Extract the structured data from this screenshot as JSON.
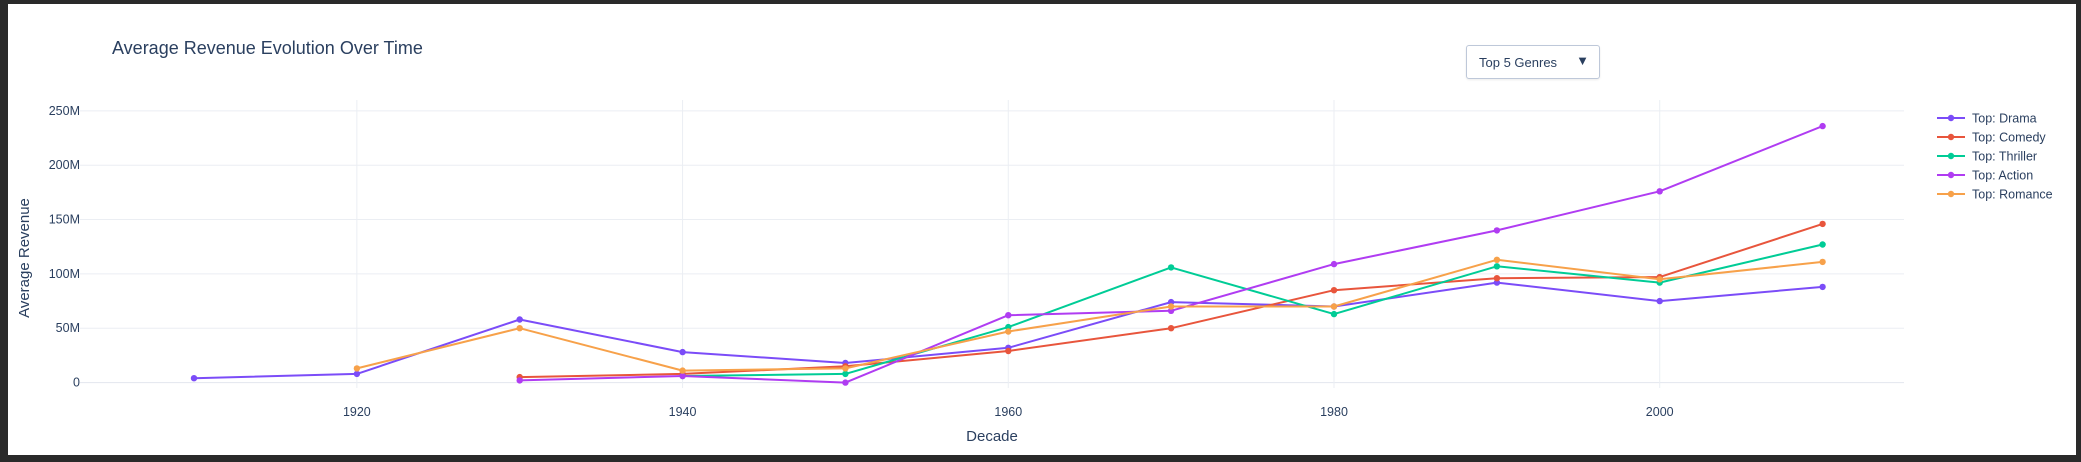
{
  "chart_data": {
    "type": "line",
    "title": "Average Revenue Evolution Over Time",
    "xlabel": "Decade",
    "ylabel": "Average Revenue",
    "xlim": [
      1903,
      2015
    ],
    "ylim": [
      -5,
      260
    ],
    "x_ticks": [
      {
        "value": 1920,
        "label": "1920"
      },
      {
        "value": 1940,
        "label": "1940"
      },
      {
        "value": 1960,
        "label": "1960"
      },
      {
        "value": 1980,
        "label": "1980"
      },
      {
        "value": 2000,
        "label": "2000"
      }
    ],
    "y_ticks": [
      {
        "value": 0,
        "label": "0"
      },
      {
        "value": 50,
        "label": "50M"
      },
      {
        "value": 100,
        "label": "100M"
      },
      {
        "value": 150,
        "label": "150M"
      },
      {
        "value": 200,
        "label": "200M"
      },
      {
        "value": 250,
        "label": "250M"
      }
    ],
    "grid": true,
    "legend_position": "right",
    "series": [
      {
        "name": "Top: Drama",
        "color": "#7b4cf8",
        "x": [
          1910,
          1920,
          1930,
          1940,
          1950,
          1960,
          1970,
          1980,
          1990,
          2000,
          2010
        ],
        "values": [
          4,
          8,
          58,
          28,
          18,
          32,
          74,
          70,
          92,
          75,
          88
        ]
      },
      {
        "name": "Top: Comedy",
        "color": "#e8553c",
        "x": [
          1930,
          1940,
          1950,
          1960,
          1970,
          1980,
          1990,
          2000,
          2010
        ],
        "values": [
          5,
          8,
          15,
          29,
          50,
          85,
          96,
          97,
          146
        ]
      },
      {
        "name": "Top: Thriller",
        "color": "#00cc96",
        "x": [
          1940,
          1950,
          1960,
          1970,
          1980,
          1990,
          2000,
          2010
        ],
        "values": [
          6,
          8,
          51,
          106,
          63,
          107,
          92,
          127
        ]
      },
      {
        "name": "Top: Action",
        "color": "#b03cf2",
        "x": [
          1930,
          1940,
          1950,
          1960,
          1970,
          1980,
          1990,
          2000,
          2010
        ],
        "values": [
          2,
          6,
          0,
          62,
          66,
          109,
          140,
          176,
          236
        ]
      },
      {
        "name": "Top: Romance",
        "color": "#f7a14a",
        "x": [
          1920,
          1930,
          1940,
          1950,
          1960,
          1970,
          1980,
          1990,
          2000,
          2010
        ],
        "values": [
          13,
          50,
          11,
          13,
          47,
          70,
          70,
          113,
          95,
          111
        ]
      }
    ]
  },
  "ui": {
    "dropdown_label": "Top 5 Genres",
    "dropdown_caret": "▼"
  }
}
